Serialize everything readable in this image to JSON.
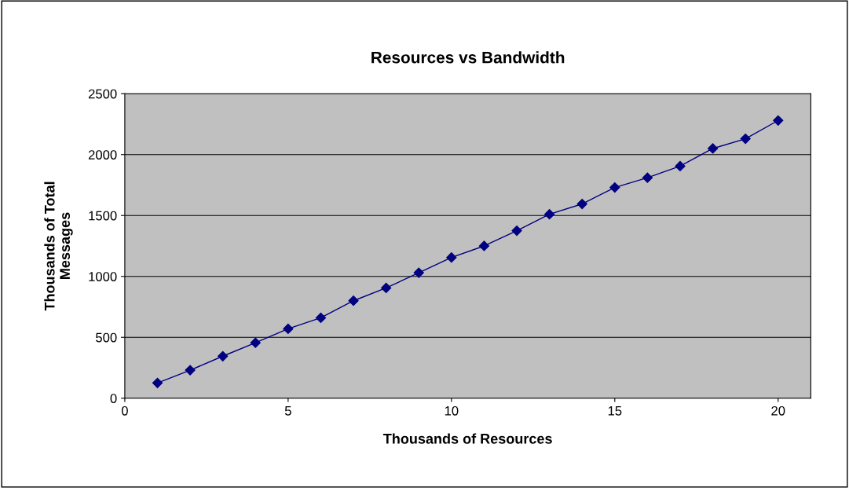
{
  "chart_data": {
    "type": "line",
    "title": "Resources vs Bandwidth",
    "xlabel": "Thousands of Resources",
    "ylabel": "Thousands of Total\nMessages",
    "x": [
      1,
      2,
      3,
      4,
      5,
      6,
      7,
      8,
      9,
      10,
      11,
      12,
      13,
      14,
      15,
      16,
      17,
      18,
      19,
      20
    ],
    "series": [
      {
        "color": "#000080",
        "values": [
          125,
          230,
          345,
          455,
          570,
          660,
          800,
          905,
          1030,
          1155,
          1250,
          1375,
          1510,
          1595,
          1730,
          1810,
          1905,
          2050,
          2130,
          2280
        ]
      }
    ],
    "xlim": [
      0,
      21
    ],
    "xticks": [
      0,
      5,
      10,
      15,
      20
    ],
    "ylim": [
      0,
      2500
    ],
    "yticks": [
      0,
      500,
      1000,
      1500,
      2000,
      2500
    ],
    "grid": "y",
    "marker": "diamond",
    "line_style": "solid"
  }
}
